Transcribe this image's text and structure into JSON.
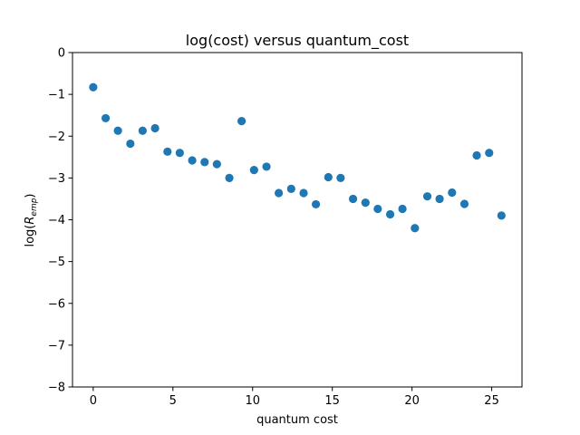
{
  "chart_data": {
    "type": "scatter",
    "title": "log(cost) versus quantum_cost",
    "xlabel": "quantum cost",
    "ylabel": {
      "base": "log(",
      "main": "R",
      "sub": "emp",
      "close": ")"
    },
    "xlim": [
      -1.3,
      26.9
    ],
    "ylim": [
      -8,
      0
    ],
    "xticks": [
      0,
      5,
      10,
      15,
      20,
      25
    ],
    "yticks": [
      0,
      -1,
      -2,
      -3,
      -4,
      -5,
      -6,
      -7,
      -8
    ],
    "ytick_labels": [
      "0",
      "−1",
      "−2",
      "−3",
      "−4",
      "−5",
      "−6",
      "−7",
      "−8"
    ],
    "grid": false,
    "marker_color": "#1f77b4",
    "points": [
      [
        0.0,
        -0.83
      ],
      [
        0.78,
        -1.57
      ],
      [
        1.55,
        -1.87
      ],
      [
        2.33,
        -2.18
      ],
      [
        3.1,
        -1.87
      ],
      [
        3.88,
        -1.81
      ],
      [
        4.66,
        -2.37
      ],
      [
        5.43,
        -2.4
      ],
      [
        6.21,
        -2.58
      ],
      [
        6.99,
        -2.62
      ],
      [
        7.76,
        -2.67
      ],
      [
        8.54,
        -3.0
      ],
      [
        9.31,
        -1.64
      ],
      [
        10.09,
        -2.81
      ],
      [
        10.87,
        -2.73
      ],
      [
        11.64,
        -3.36
      ],
      [
        12.42,
        -3.26
      ],
      [
        13.2,
        -3.36
      ],
      [
        13.97,
        -3.63
      ],
      [
        14.75,
        -2.98
      ],
      [
        15.52,
        -3.0
      ],
      [
        16.3,
        -3.5
      ],
      [
        17.08,
        -3.59
      ],
      [
        17.85,
        -3.74
      ],
      [
        18.63,
        -3.87
      ],
      [
        19.4,
        -3.74
      ],
      [
        20.18,
        -4.2
      ],
      [
        20.96,
        -3.44
      ],
      [
        21.73,
        -3.5
      ],
      [
        22.51,
        -3.35
      ],
      [
        23.29,
        -3.62
      ],
      [
        24.06,
        -2.46
      ],
      [
        24.84,
        -2.4
      ],
      [
        25.61,
        -3.9
      ]
    ]
  }
}
